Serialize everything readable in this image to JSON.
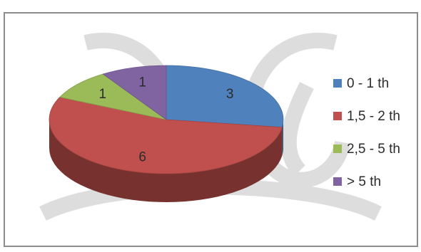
{
  "chart_data": {
    "type": "pie",
    "style": "3d",
    "categories": [
      "0 - 1 th",
      "1,5 - 2 th",
      "2,5 - 5 th",
      "> 5 th"
    ],
    "values": [
      3,
      6,
      1,
      1
    ],
    "data_labels": [
      "3",
      "6",
      "1",
      "1"
    ],
    "colors": [
      "#4f81bd",
      "#c0504d",
      "#9bbb59",
      "#8064a2"
    ],
    "legend": "right",
    "title": ""
  }
}
